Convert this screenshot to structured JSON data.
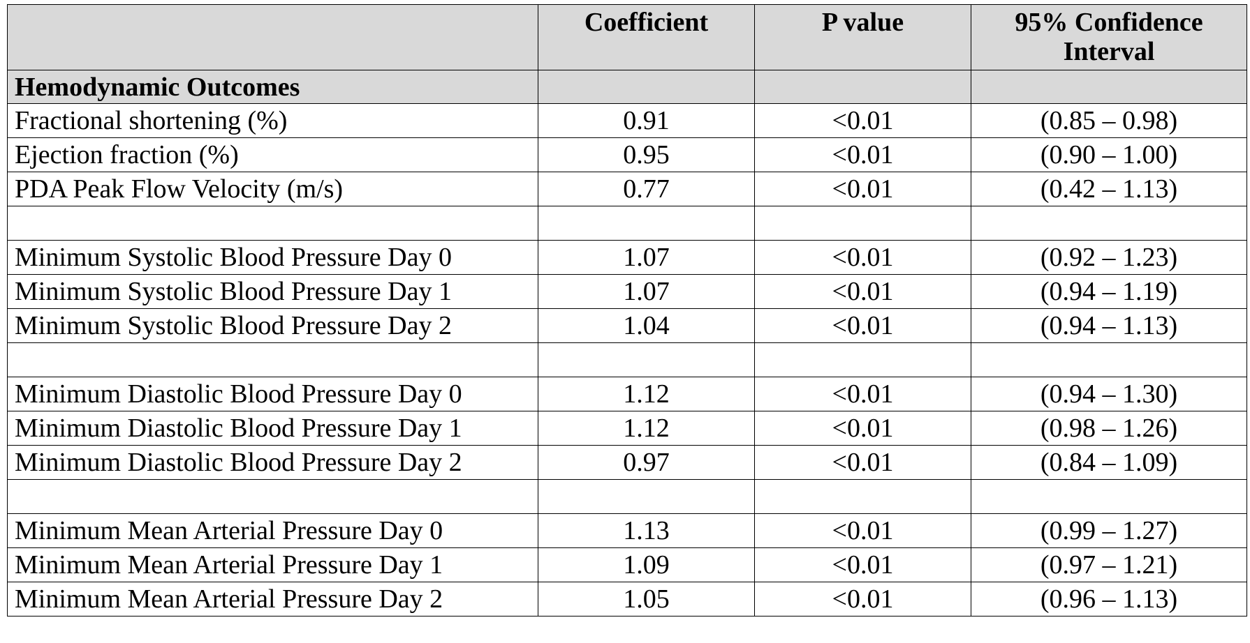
{
  "header": {
    "label_col": "",
    "coefficient": "Coefficient",
    "p_value": "P value",
    "ci": "95% Confidence Interval"
  },
  "section": "Hemodynamic Outcomes",
  "rows": [
    {
      "label": "Fractional shortening (%)",
      "coef": "0.91",
      "p": "<0.01",
      "ci": "(0.85 – 0.98)"
    },
    {
      "label": "Ejection fraction (%)",
      "coef": "0.95",
      "p": "<0.01",
      "ci": "(0.90 – 1.00)"
    },
    {
      "label": "PDA Peak Flow Velocity (m/s)",
      "coef": "0.77",
      "p": "<0.01",
      "ci": "(0.42 – 1.13)"
    },
    {
      "label": "",
      "coef": "",
      "p": "",
      "ci": ""
    },
    {
      "label": "Minimum Systolic Blood Pressure Day 0",
      "coef": "1.07",
      "p": "<0.01",
      "ci": "(0.92 – 1.23)"
    },
    {
      "label": "Minimum Systolic Blood Pressure Day 1",
      "coef": "1.07",
      "p": "<0.01",
      "ci": "(0.94 – 1.19)"
    },
    {
      "label": "Minimum Systolic Blood Pressure Day 2",
      "coef": "1.04",
      "p": "<0.01",
      "ci": "(0.94 – 1.13)"
    },
    {
      "label": "",
      "coef": "",
      "p": "",
      "ci": ""
    },
    {
      "label": "Minimum Diastolic Blood Pressure Day 0",
      "coef": "1.12",
      "p": "<0.01",
      "ci": "(0.94 – 1.30)"
    },
    {
      "label": "Minimum Diastolic Blood Pressure Day 1",
      "coef": "1.12",
      "p": "<0.01",
      "ci": "(0.98 – 1.26)"
    },
    {
      "label": "Minimum Diastolic Blood Pressure Day 2",
      "coef": "0.97",
      "p": "<0.01",
      "ci": "(0.84 – 1.09)"
    },
    {
      "label": "",
      "coef": "",
      "p": "",
      "ci": ""
    },
    {
      "label": "Minimum Mean Arterial Pressure Day 0",
      "coef": "1.13",
      "p": "<0.01",
      "ci": "(0.99 – 1.27)"
    },
    {
      "label": "Minimum Mean Arterial Pressure Day 1",
      "coef": "1.09",
      "p": "<0.01",
      "ci": "(0.97 – 1.21)"
    },
    {
      "label": "Minimum Mean Arterial Pressure Day 2",
      "coef": "1.05",
      "p": "<0.01",
      "ci": "(0.96 – 1.13)"
    }
  ],
  "colors": {
    "header_bg": "#d9d9d9",
    "border": "#000000"
  }
}
